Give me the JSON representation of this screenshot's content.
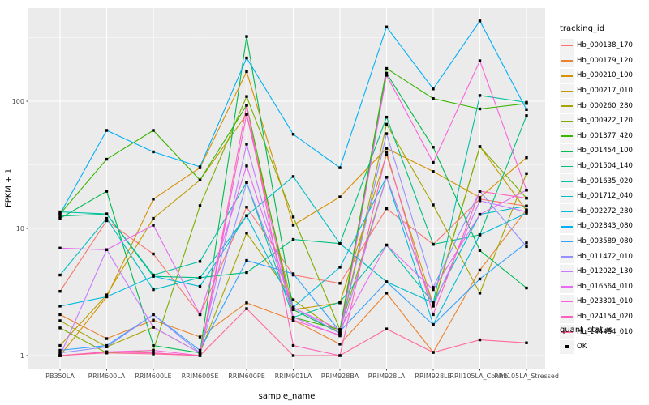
{
  "panel": {
    "bg": "#EBEBEB",
    "grid_color": "#FFFFFF",
    "point_color": "#000000"
  },
  "axes": {
    "x_title": "sample_name",
    "y_title": "FPKM + 1",
    "y_ticks": [
      {
        "label": "1",
        "value": 1
      },
      {
        "label": "10",
        "value": 10
      },
      {
        "label": "100",
        "value": 100
      }
    ],
    "y_scale": "log10",
    "tick_color": "#4D4D4D"
  },
  "legend": {
    "title": "tracking_id",
    "items": [
      {
        "label": "Hb_000138_170",
        "color": "#F8766D"
      },
      {
        "label": "Hb_000179_120",
        "color": "#EA8331"
      },
      {
        "label": "Hb_000210_100",
        "color": "#D89000"
      },
      {
        "label": "Hb_000217_010",
        "color": "#C09B00"
      },
      {
        "label": "Hb_000260_280",
        "color": "#A3A500"
      },
      {
        "label": "Hb_000922_120",
        "color": "#7CAE00"
      },
      {
        "label": "Hb_001377_420",
        "color": "#39B600"
      },
      {
        "label": "Hb_001454_100",
        "color": "#00BB4E"
      },
      {
        "label": "Hb_001504_140",
        "color": "#00BF7D"
      },
      {
        "label": "Hb_001635_020",
        "color": "#00C1A3"
      },
      {
        "label": "Hb_001712_040",
        "color": "#00BFC4"
      },
      {
        "label": "Hb_002272_280",
        "color": "#00BAE0"
      },
      {
        "label": "Hb_002843_080",
        "color": "#00B0F6"
      },
      {
        "label": "Hb_003589_080",
        "color": "#35A2FF"
      },
      {
        "label": "Hb_011472_010",
        "color": "#9590FF"
      },
      {
        "label": "Hb_012022_130",
        "color": "#C77CFF"
      },
      {
        "label": "Hb_016564_010",
        "color": "#E76BF3"
      },
      {
        "label": "Hb_023301_010",
        "color": "#FA62DB"
      },
      {
        "label": "Hb_024154_020",
        "color": "#FF62BC"
      },
      {
        "label": "Hb_144484_010",
        "color": "#FF6A98"
      }
    ]
  },
  "legend2": {
    "title": "quant_status",
    "items": [
      {
        "label": "OK"
      }
    ]
  },
  "chart_data": {
    "type": "line",
    "title": "",
    "xlabel": "sample_name",
    "ylabel": "FPKM + 1",
    "y_scale": "log10",
    "ylim": [
      1,
      500
    ],
    "grid": true,
    "legend_position": "right",
    "categories": [
      "PB350LA",
      "RRIM600LA",
      "RRIM600LE",
      "RRIM600SE",
      "RRIM600PE",
      "RRIM901LA",
      "RRIM928BA",
      "RRIM928LA",
      "RRIM928LE",
      "RRII105LA_Control",
      "RRII105LA_Stressed"
    ],
    "series": [
      {
        "name": "Hb_000138_170",
        "color": "#F8766D",
        "values": [
          3.2,
          11.5,
          6.3,
          2.1,
          14.7,
          4.3,
          3.7,
          14.3,
          7.5,
          17.0,
          15.0
        ]
      },
      {
        "name": "Hb_000179_120",
        "color": "#EA8331",
        "values": [
          2.1,
          1.36,
          1.9,
          1.4,
          2.6,
          1.9,
          1.23,
          3.1,
          1.06,
          4.7,
          14.0
        ]
      },
      {
        "name": "Hb_000210_100",
        "color": "#D89000",
        "values": [
          1.0,
          2.9,
          17.0,
          30.0,
          171.0,
          10.6,
          17.7,
          42.6,
          28.0,
          17.5,
          36.0
        ]
      },
      {
        "name": "Hb_000217_010",
        "color": "#C09B00",
        "values": [
          1.2,
          3.0,
          12.0,
          24.0,
          79.0,
          2.3,
          2.6,
          38.0,
          2.5,
          44.0,
          13.8
        ]
      },
      {
        "name": "Hb_000260_280",
        "color": "#A3A500",
        "values": [
          1.88,
          1.17,
          1.67,
          1.05,
          9.2,
          2.75,
          1.5,
          66.0,
          15.3,
          3.1,
          27.0
        ]
      },
      {
        "name": "Hb_000922_120",
        "color": "#7CAE00",
        "values": [
          1.65,
          1.05,
          1.1,
          15.1,
          109.0,
          12.3,
          1.6,
          25.3,
          2.45,
          44.0,
          17.3
        ]
      },
      {
        "name": "Hb_001377_420",
        "color": "#39B600",
        "values": [
          13.0,
          35.0,
          59.0,
          24.0,
          93.0,
          2.0,
          1.6,
          181.0,
          105.0,
          87.0,
          96.0
        ]
      },
      {
        "name": "Hb_001454_100",
        "color": "#00BB4E",
        "values": [
          12.0,
          19.6,
          1.2,
          1.05,
          323.0,
          2.3,
          1.5,
          166.0,
          43.5,
          6.7,
          3.4
        ]
      },
      {
        "name": "Hb_001504_140",
        "color": "#00BF7D",
        "values": [
          12.5,
          13.0,
          4.2,
          4.1,
          4.5,
          8.2,
          7.6,
          75.0,
          7.5,
          8.9,
          77.0
        ]
      },
      {
        "name": "Hb_001635_020",
        "color": "#00C1A3",
        "values": [
          13.5,
          13.0,
          4.3,
          5.5,
          23.0,
          2.0,
          2.63,
          7.4,
          2.6,
          111.0,
          98.0
        ]
      },
      {
        "name": "Hb_001712_040",
        "color": "#00BFC4",
        "values": [
          4.3,
          12.0,
          3.3,
          4.1,
          12.6,
          25.6,
          7.6,
          3.8,
          2.6,
          12.9,
          15.0
        ]
      },
      {
        "name": "Hb_002272_280",
        "color": "#00BAE0",
        "values": [
          2.45,
          2.9,
          4.2,
          3.5,
          12.6,
          2.4,
          4.95,
          25.3,
          1.75,
          8.9,
          13.2
        ]
      },
      {
        "name": "Hb_002843_080",
        "color": "#00B0F6",
        "values": [
          13.0,
          59.0,
          40.0,
          30.5,
          219.0,
          55.0,
          30.0,
          384.0,
          125.0,
          428.0,
          86.0
        ]
      },
      {
        "name": "Hb_003589_080",
        "color": "#35A2FF",
        "values": [
          1.1,
          1.2,
          2.1,
          1.1,
          5.6,
          4.4,
          1.55,
          3.8,
          1.75,
          4.0,
          7.7
        ]
      },
      {
        "name": "Hb_011472_010",
        "color": "#9590FF",
        "values": [
          1.05,
          1.17,
          2.1,
          1.05,
          23.0,
          2.4,
          1.5,
          55.6,
          3.44,
          19.6,
          7.2
        ]
      },
      {
        "name": "Hb_012022_130",
        "color": "#C77CFF",
        "values": [
          1.0,
          6.8,
          1.67,
          1.05,
          46.0,
          2.0,
          1.43,
          25.3,
          2.45,
          16.5,
          13.5
        ]
      },
      {
        "name": "Hb_016564_010",
        "color": "#E76BF3",
        "values": [
          7.0,
          6.8,
          10.6,
          2.1,
          31.0,
          2.37,
          1.6,
          7.4,
          3.3,
          12.9,
          20.0
        ]
      },
      {
        "name": "Hb_023301_010",
        "color": "#FA62DB",
        "values": [
          1.0,
          1.07,
          1.1,
          1.0,
          79.0,
          1.9,
          1.45,
          160.0,
          33.0,
          208.0,
          20.0
        ]
      },
      {
        "name": "Hb_024154_020",
        "color": "#FF62BC",
        "values": [
          1.0,
          1.07,
          1.05,
          1.0,
          93.0,
          1.2,
          1.0,
          40.0,
          2.1,
          19.6,
          17.3
        ]
      },
      {
        "name": "Hb_144484_010",
        "color": "#FF6A98",
        "values": [
          1.0,
          1.05,
          1.03,
          1.0,
          2.34,
          1.0,
          1.0,
          1.62,
          1.06,
          1.33,
          1.26
        ]
      }
    ]
  }
}
